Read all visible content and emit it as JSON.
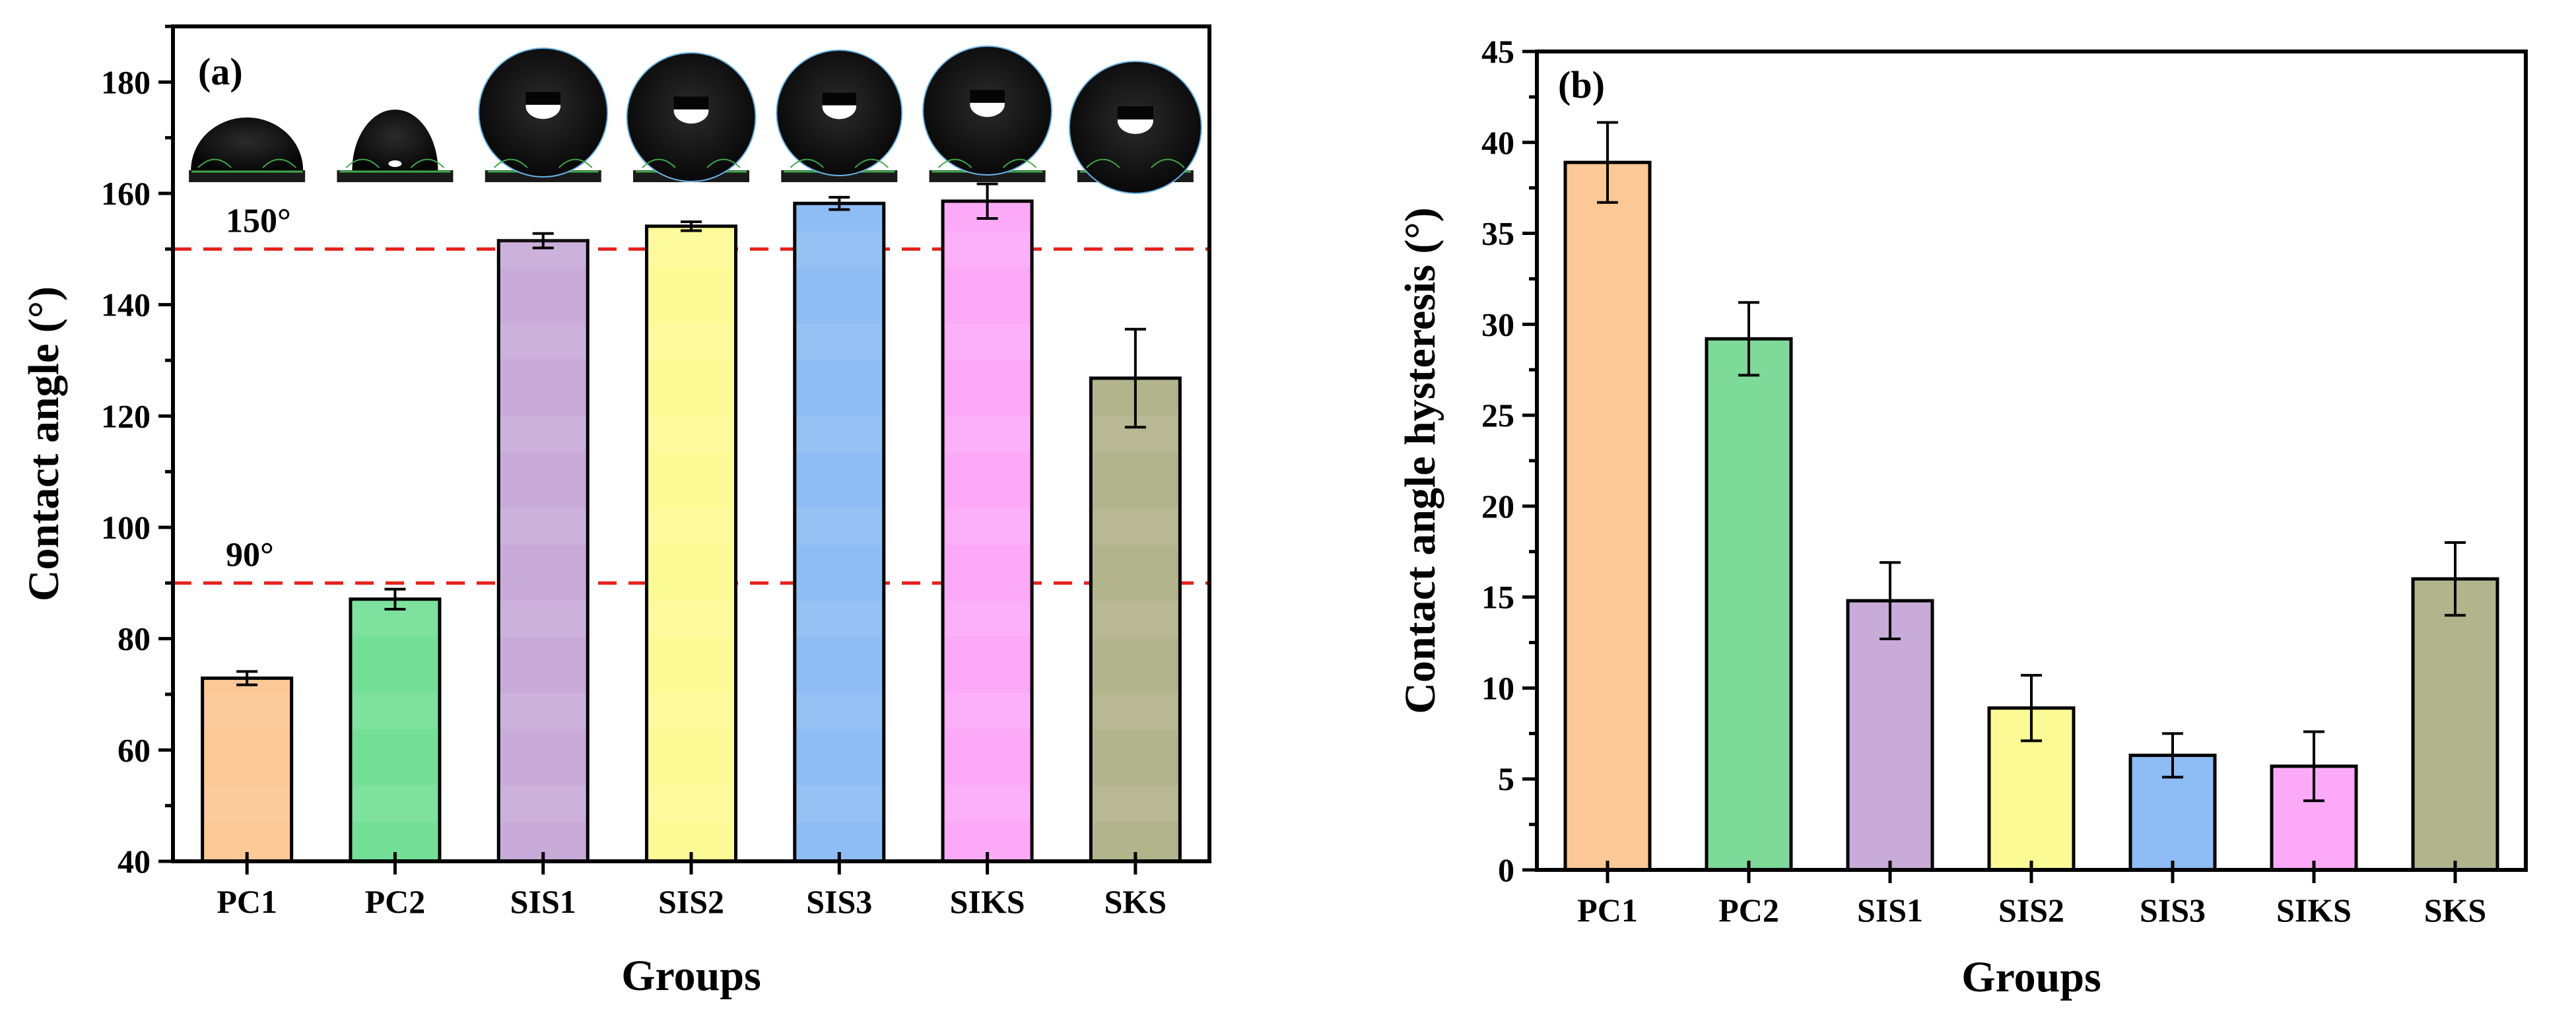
{
  "chart_data": [
    {
      "panel": "(a)",
      "type": "bar",
      "xlabel": "Groups",
      "ylabel": "Contact angle (°)",
      "ylim": [
        40,
        190
      ],
      "yticks": [
        40,
        60,
        80,
        100,
        120,
        140,
        160,
        180
      ],
      "categories": [
        "PC1",
        "PC2",
        "SIS1",
        "SIS2",
        "SIS3",
        "SIKS",
        "SKS"
      ],
      "values": [
        72.9,
        87.1,
        151.5,
        154.1,
        158.2,
        158.6,
        126.8
      ],
      "errors": [
        1.2,
        1.8,
        1.3,
        0.8,
        1.1,
        3.1,
        8.8
      ],
      "colors": [
        "#fbc896",
        "#74df96",
        "#c8abd8",
        "#fcfa94",
        "#8ebcf4",
        "#fcaaf7",
        "#b2b48b"
      ],
      "reference_lines": [
        {
          "value": 150,
          "label": "150°",
          "color": "#e8201c"
        },
        {
          "value": 90,
          "label": "90°",
          "color": "#e8201c"
        }
      ],
      "inset_images": "water droplet photos above each bar"
    },
    {
      "panel": "(b)",
      "type": "bar",
      "xlabel": "Groups",
      "ylabel": "Contact angle hysteresis (°)",
      "ylim": [
        0,
        45
      ],
      "yticks": [
        0,
        5,
        10,
        15,
        20,
        25,
        30,
        35,
        40,
        45
      ],
      "categories": [
        "PC1",
        "PC2",
        "SIS1",
        "SIS2",
        "SIS3",
        "SIKS",
        "SKS"
      ],
      "values": [
        38.9,
        29.2,
        14.8,
        8.9,
        6.3,
        5.7,
        16.0
      ],
      "errors": [
        2.2,
        2.0,
        2.1,
        1.8,
        1.2,
        1.9,
        2.0
      ],
      "colors": [
        "#fbc896",
        "#7dda98",
        "#c8abd8",
        "#fcfa94",
        "#8ebcf4",
        "#fcaaf7",
        "#b2b48b"
      ]
    }
  ]
}
